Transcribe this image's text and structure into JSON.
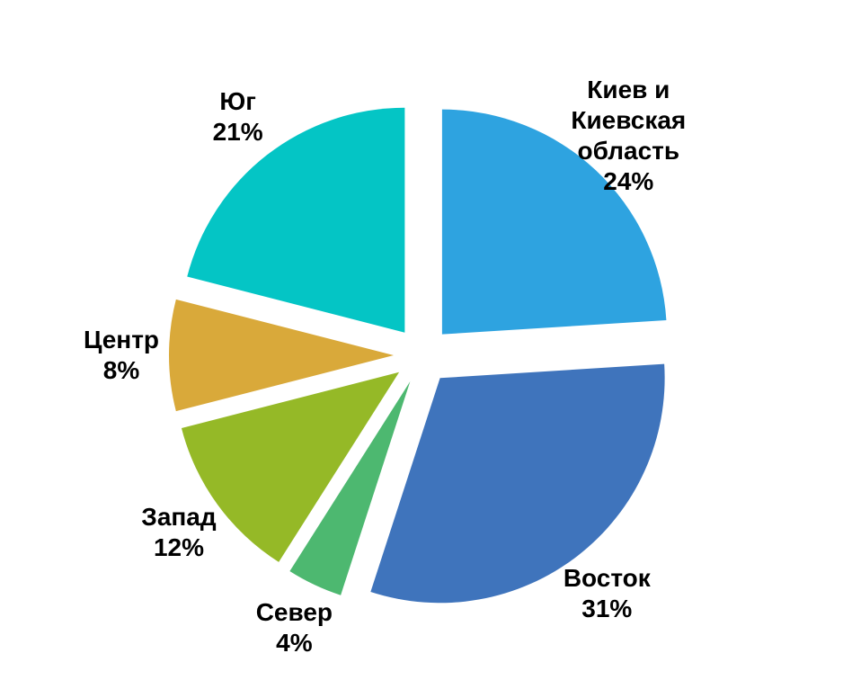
{
  "chart_data": {
    "type": "pie",
    "categories": [
      "Киев и Киевская область",
      "Восток",
      "Север",
      "Запад",
      "Центр",
      "Юг"
    ],
    "values": [
      24,
      31,
      4,
      12,
      8,
      21
    ],
    "value_labels": [
      "24%",
      "31%",
      "4%",
      "12%",
      "8%",
      "21%"
    ],
    "colors": [
      "#2ea3e0",
      "#3f74bc",
      "#4db870",
      "#95b927",
      "#d9a93a",
      "#04c5c5"
    ]
  }
}
